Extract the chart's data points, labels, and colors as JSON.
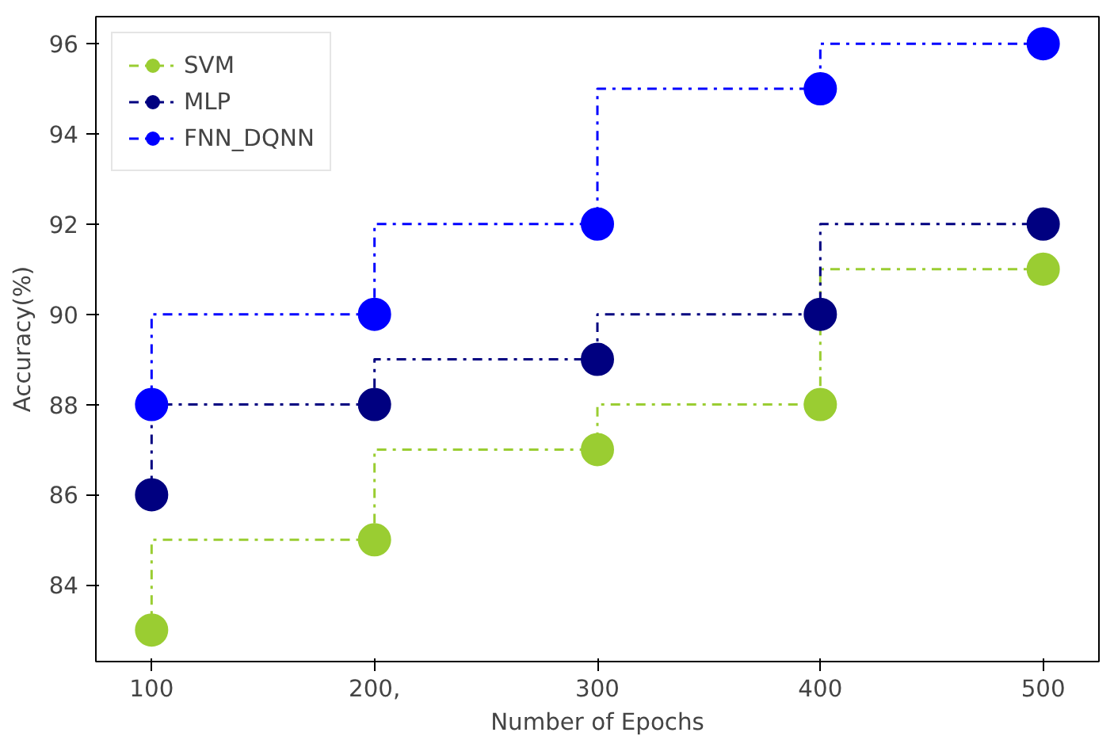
{
  "chart_data": {
    "type": "step",
    "xlabel": "Number of Epochs",
    "ylabel": "Accuracy(%)",
    "x": [
      100,
      200,
      300,
      400,
      500
    ],
    "series": [
      {
        "name": "SVM",
        "color": "#9acd32",
        "values": [
          83,
          85,
          87,
          88,
          91
        ]
      },
      {
        "name": "MLP",
        "color": "#000080",
        "values": [
          86,
          88,
          89,
          90,
          92
        ]
      },
      {
        "name": "FNN_DQNN",
        "color": "#0000ff",
        "values": [
          88,
          90,
          92,
          95,
          96
        ]
      }
    ],
    "xlim": [
      75,
      525
    ],
    "ylim": [
      82.3,
      96.6
    ],
    "xticks": [
      100,
      {
        "value": 200,
        "label": "200,"
      },
      300,
      400,
      500
    ],
    "yticks": [
      84,
      86,
      88,
      90,
      92,
      94,
      96
    ],
    "legend": "top left",
    "marker": "circle",
    "line_style": "dashdot",
    "grid": false
  }
}
